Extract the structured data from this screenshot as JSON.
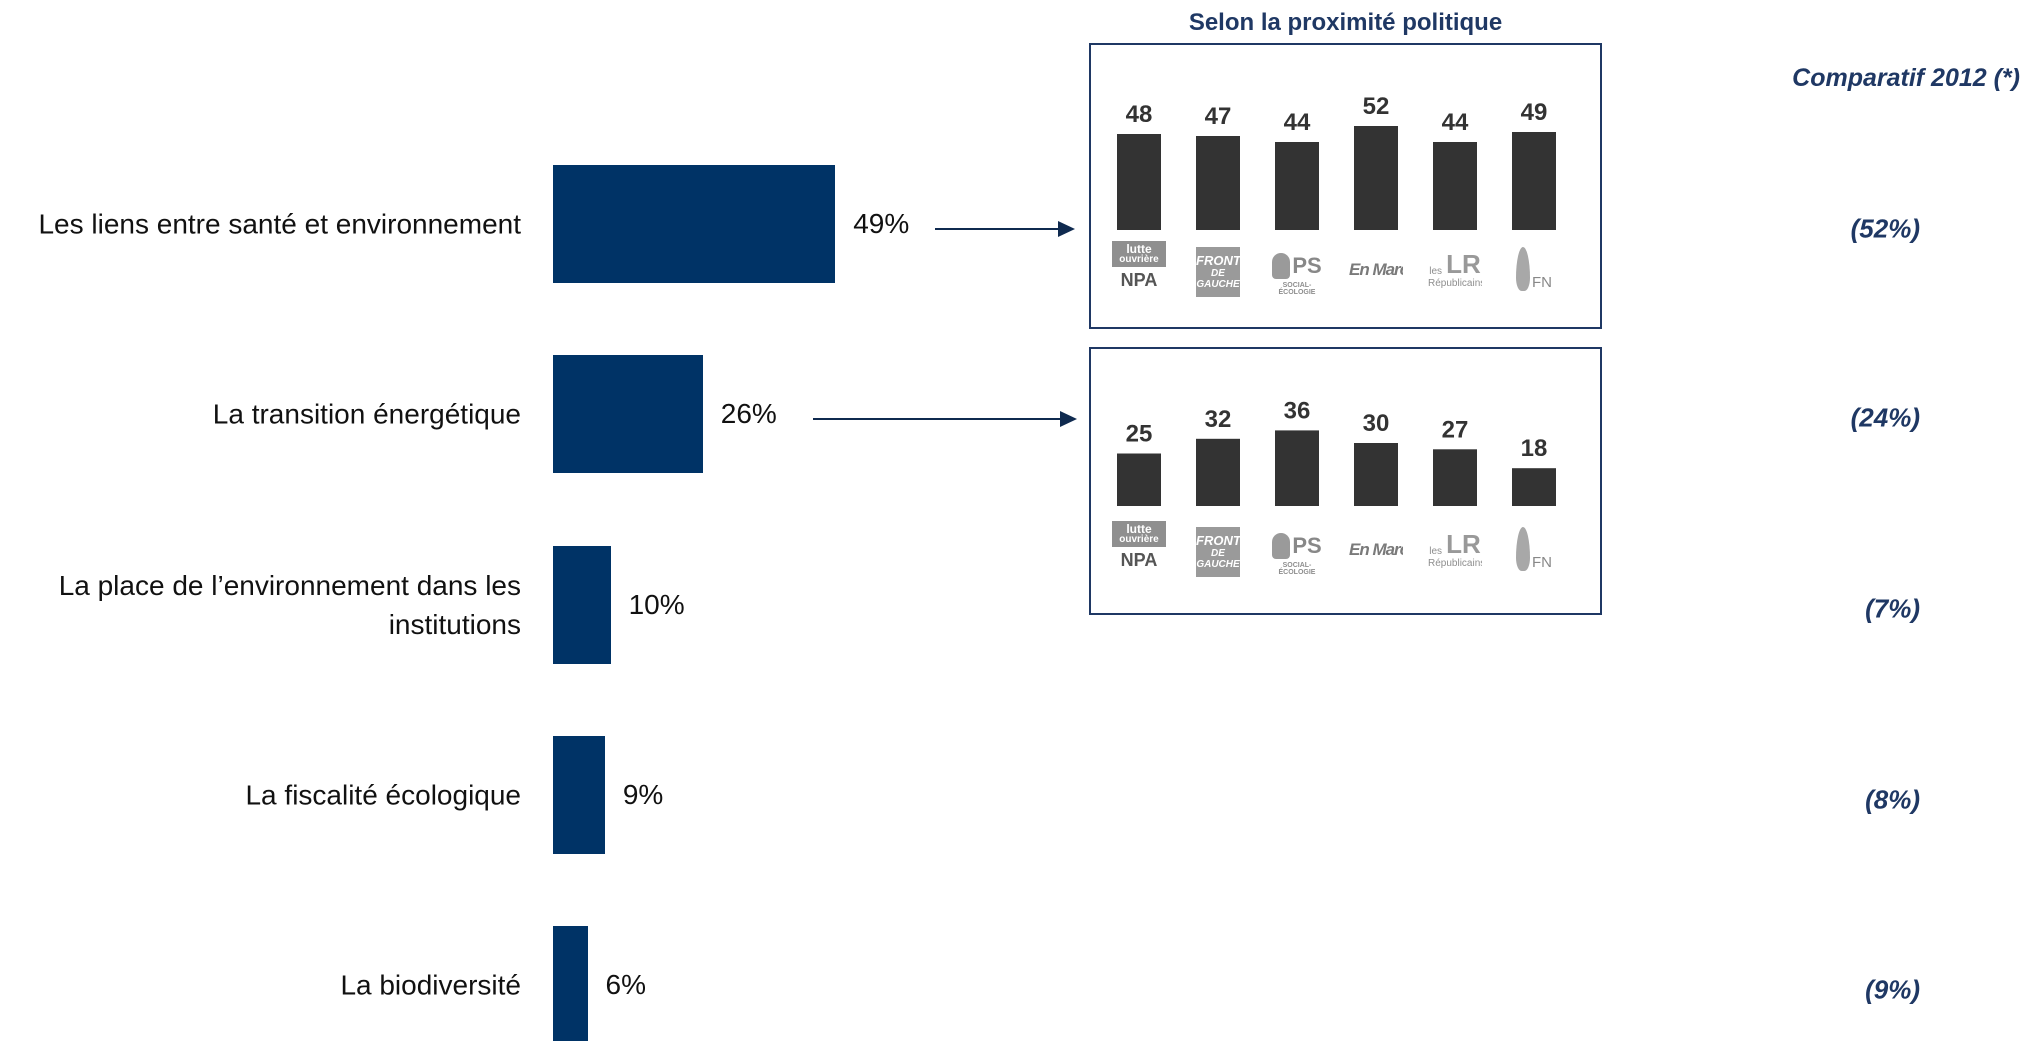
{
  "chart_data": [
    {
      "type": "bar",
      "orientation": "horizontal",
      "categories": [
        "Les liens entre santé et environnement",
        "La transition énergétique",
        "La place de l’environnement dans les institutions",
        "La fiscalité écologique",
        "La biodiversité"
      ],
      "values": [
        49,
        26,
        10,
        9,
        6
      ],
      "value_labels": [
        "49%",
        "26%",
        "10%",
        "9%",
        "6%"
      ],
      "bar_color": "#003366"
    },
    {
      "type": "table",
      "title": "Comparatif 2012 (*)",
      "values": [
        "(52%)",
        "(24%)",
        "(7%)",
        "(8%)",
        "(9%)"
      ]
    },
    {
      "type": "bar",
      "title": "Selon la proximité politique",
      "categories": [
        "lutte ouvrière / NPA",
        "Front de Gauche",
        "PS",
        "En Marche !",
        "Les Républicains",
        "FN"
      ],
      "values": [
        48,
        47,
        44,
        52,
        44,
        49
      ],
      "bar_color": "#333333"
    },
    {
      "type": "bar",
      "categories": [
        "lutte ouvrière / NPA",
        "Front de Gauche",
        "PS",
        "En Marche !",
        "Les Républicains",
        "FN"
      ],
      "values": [
        25,
        32,
        36,
        30,
        27,
        18
      ],
      "bar_color": "#333333"
    }
  ],
  "logos": {
    "lo_line1": "lutte",
    "lo_line2": "ouvrière",
    "npa": "NPA",
    "fg_line1": "FRONT",
    "fg_line2": "DE GAUCHE",
    "ps": "PS",
    "ps_sub": "SOCIAL-ÉCOLOGIE",
    "em": "En Marche !",
    "lr_small": "les",
    "lr_big": "LR",
    "lr_name": "Républicains",
    "fn": "FN"
  }
}
